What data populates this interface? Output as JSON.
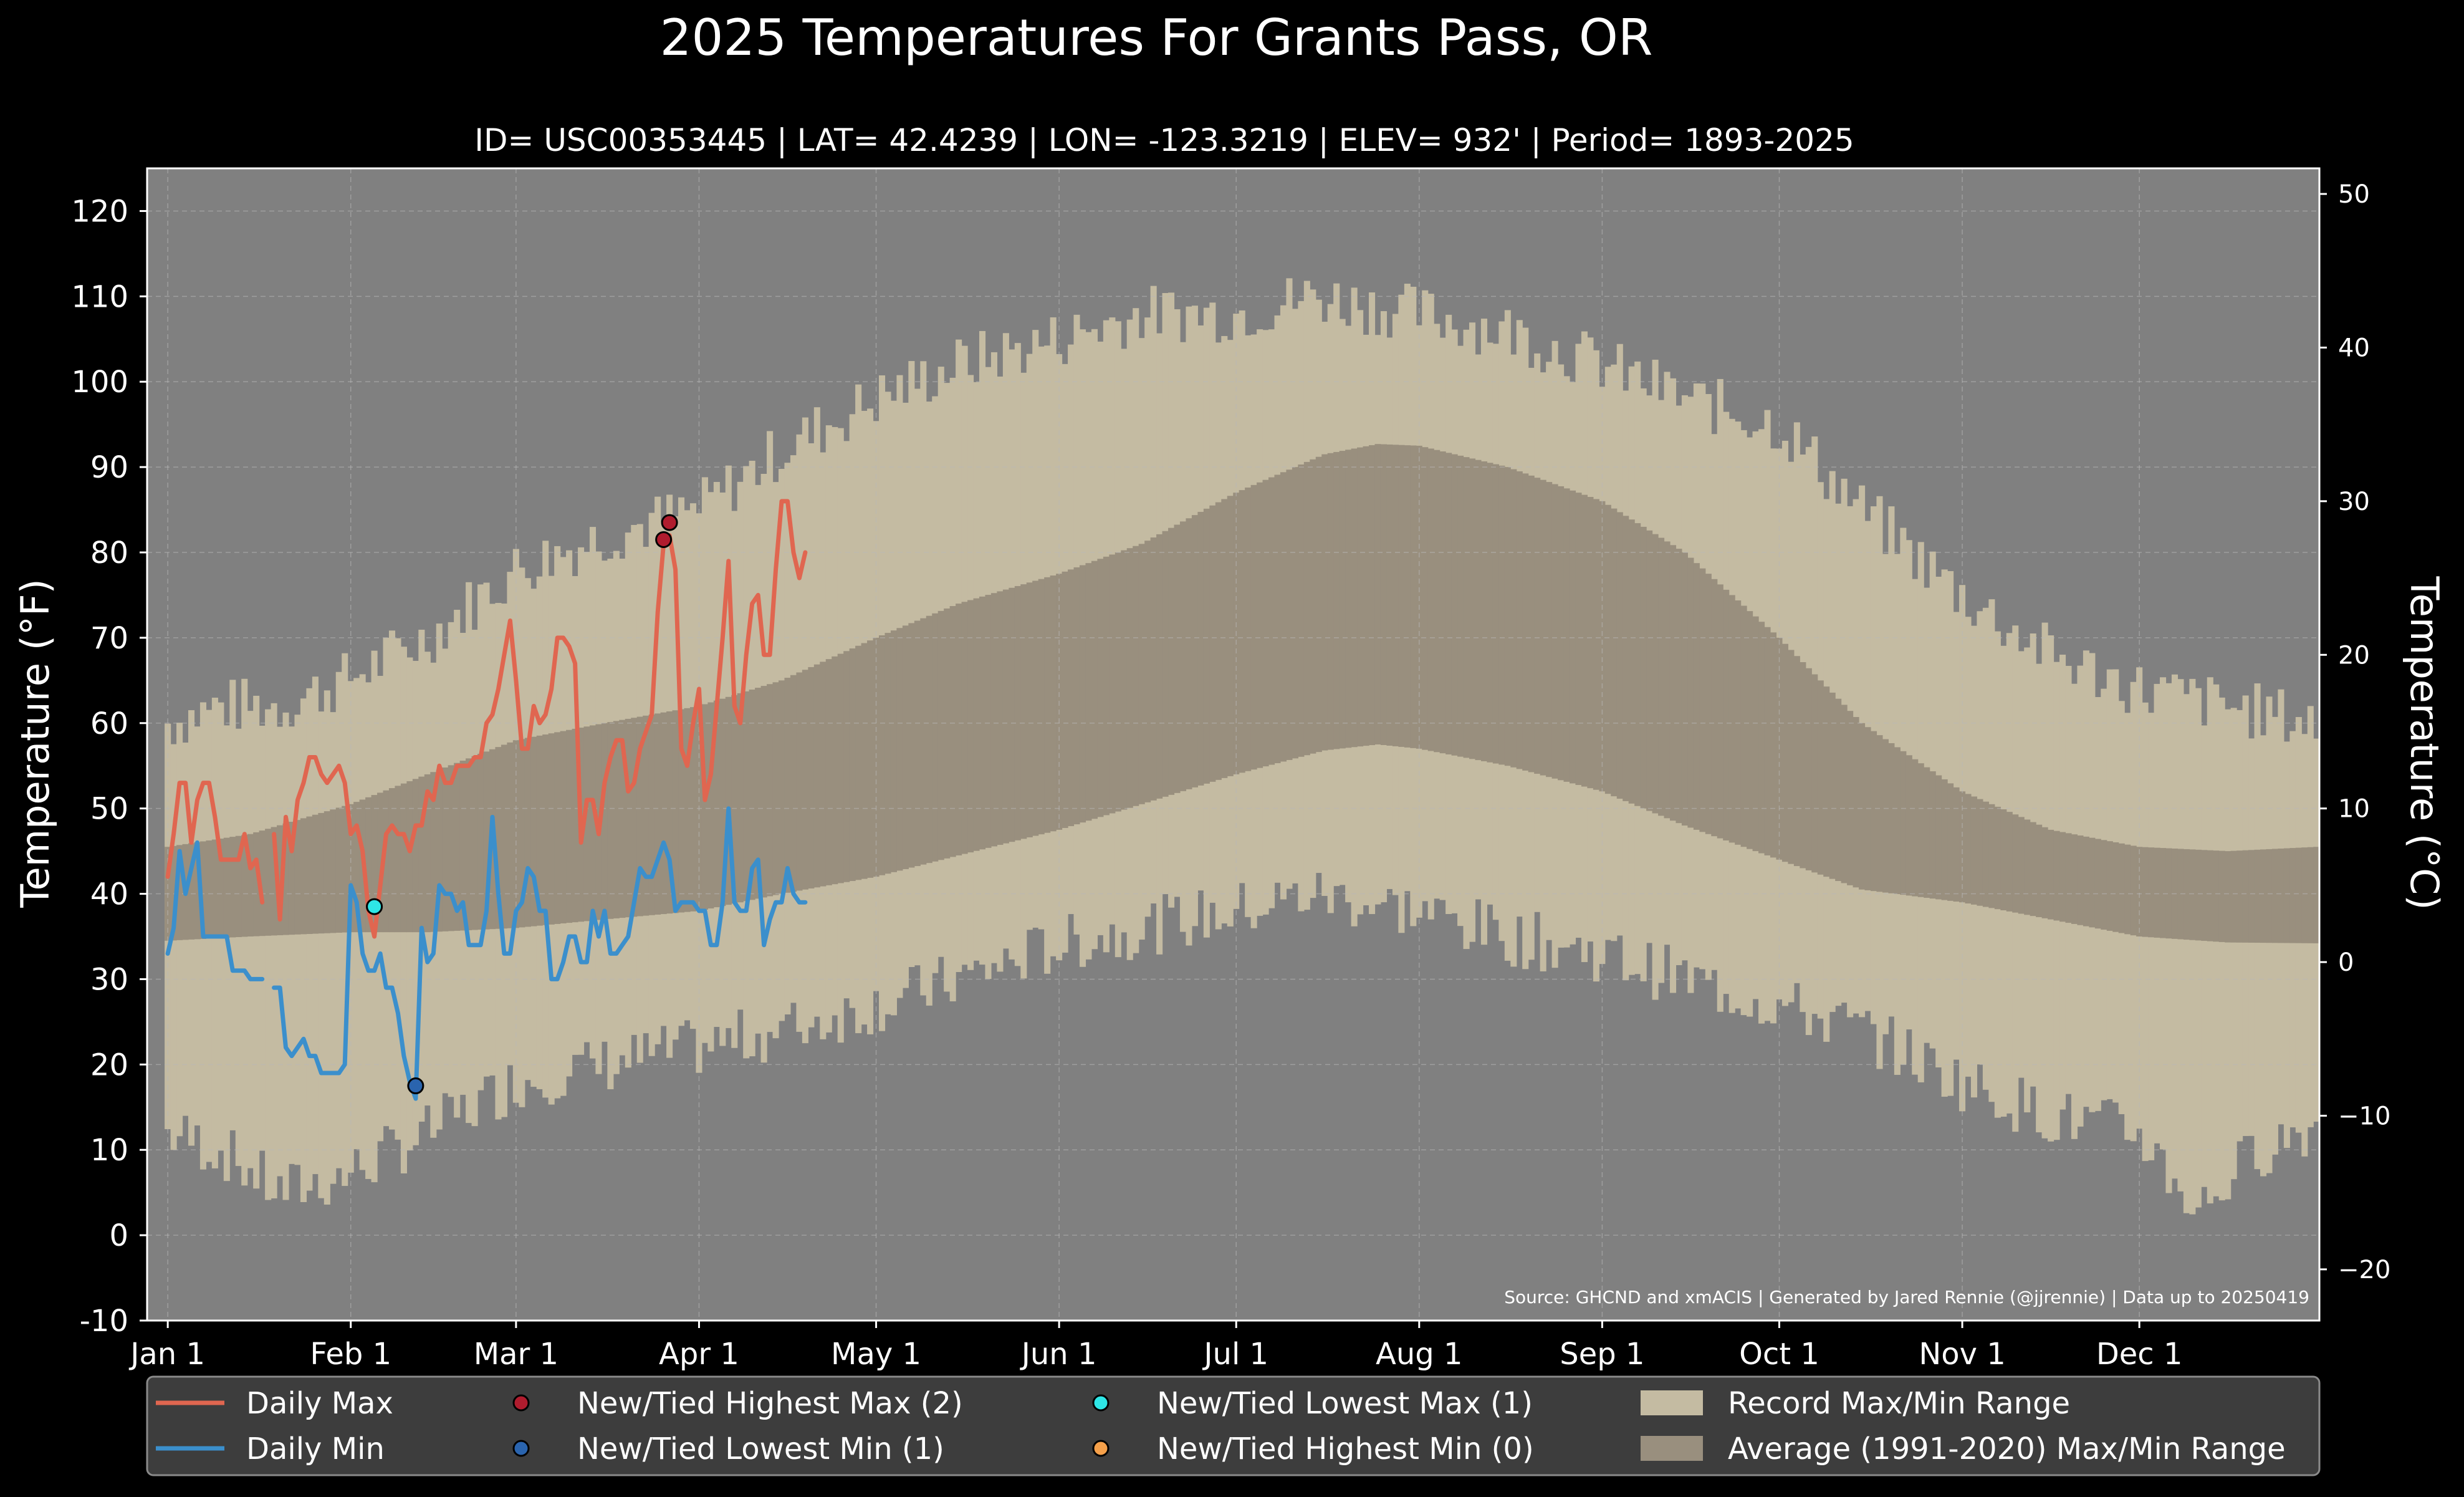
{
  "chart_data": {
    "type": "bar",
    "title": "2025 Temperatures For Grants Pass, OR",
    "subtitle": "ID= USC00353445 | LAT= 42.4239 | LON= -123.3219 | ELEV= 932' | Period= 1893-2025",
    "ylabel_left": "Temperature (°F)",
    "ylabel_right": "Temperature (°C)",
    "source_note": "Source: GHCND and xmACIS | Generated by Jared Rennie (@jjrennie) | Data up to 20250419",
    "ylim_f": [
      -10,
      125
    ],
    "yticks_f": [
      -10,
      0,
      10,
      20,
      30,
      40,
      50,
      60,
      70,
      80,
      90,
      100,
      110,
      120
    ],
    "yticks_c": [
      -20,
      -10,
      0,
      10,
      20,
      30,
      40,
      50
    ],
    "xlim_day": [
      -2.5,
      365.5
    ],
    "month_ticks": [
      {
        "label": "Jan 1",
        "day": 1
      },
      {
        "label": "Feb 1",
        "day": 32
      },
      {
        "label": "Mar 1",
        "day": 60
      },
      {
        "label": "Apr 1",
        "day": 91
      },
      {
        "label": "May 1",
        "day": 121
      },
      {
        "label": "Jun 1",
        "day": 152
      },
      {
        "label": "Jul 1",
        "day": 182
      },
      {
        "label": "Aug 1",
        "day": 213
      },
      {
        "label": "Sep 1",
        "day": 244
      },
      {
        "label": "Oct 1",
        "day": 274
      },
      {
        "label": "Nov 1",
        "day": 305
      },
      {
        "label": "Dec 1",
        "day": 335
      }
    ],
    "grid": true,
    "legend_position": "bottom",
    "record_max_anchors": [
      [
        1,
        60
      ],
      [
        10,
        62
      ],
      [
        20,
        62
      ],
      [
        31,
        65
      ],
      [
        45,
        70
      ],
      [
        60,
        78
      ],
      [
        75,
        82
      ],
      [
        91,
        85
      ],
      [
        105,
        92
      ],
      [
        121,
        98
      ],
      [
        135,
        102
      ],
      [
        152,
        105
      ],
      [
        166,
        108
      ],
      [
        182,
        108
      ],
      [
        195,
        110
      ],
      [
        213,
        108
      ],
      [
        228,
        106
      ],
      [
        244,
        102
      ],
      [
        258,
        98
      ],
      [
        274,
        95
      ],
      [
        288,
        85
      ],
      [
        305,
        75
      ],
      [
        320,
        68
      ],
      [
        335,
        64
      ],
      [
        350,
        62
      ],
      [
        365,
        60
      ]
    ],
    "record_min_anchors": [
      [
        1,
        12
      ],
      [
        10,
        10
      ],
      [
        20,
        5
      ],
      [
        31,
        7
      ],
      [
        45,
        12
      ],
      [
        60,
        18
      ],
      [
        75,
        20
      ],
      [
        91,
        22
      ],
      [
        105,
        24
      ],
      [
        121,
        27
      ],
      [
        135,
        30
      ],
      [
        152,
        34
      ],
      [
        166,
        36
      ],
      [
        182,
        38
      ],
      [
        195,
        40
      ],
      [
        213,
        38
      ],
      [
        228,
        35
      ],
      [
        244,
        33
      ],
      [
        258,
        30
      ],
      [
        274,
        27
      ],
      [
        288,
        24
      ],
      [
        305,
        18
      ],
      [
        320,
        14
      ],
      [
        335,
        12
      ],
      [
        345,
        3
      ],
      [
        355,
        10
      ],
      [
        365,
        13
      ]
    ],
    "avg_max_anchors": [
      [
        1,
        45.5
      ],
      [
        15,
        47
      ],
      [
        32,
        50.5
      ],
      [
        45,
        54
      ],
      [
        60,
        58
      ],
      [
        75,
        60
      ],
      [
        91,
        62
      ],
      [
        105,
        65
      ],
      [
        121,
        70
      ],
      [
        135,
        74
      ],
      [
        152,
        77.5
      ],
      [
        166,
        81
      ],
      [
        182,
        87
      ],
      [
        197,
        91.5
      ],
      [
        206,
        92.7
      ],
      [
        213,
        92.5
      ],
      [
        228,
        90
      ],
      [
        244,
        86
      ],
      [
        258,
        80
      ],
      [
        274,
        70
      ],
      [
        288,
        60
      ],
      [
        305,
        52
      ],
      [
        320,
        47.5
      ],
      [
        335,
        45.5
      ],
      [
        350,
        45
      ],
      [
        365,
        45.5
      ]
    ],
    "avg_min_anchors": [
      [
        1,
        34.5
      ],
      [
        15,
        35
      ],
      [
        32,
        35.5
      ],
      [
        45,
        35.5
      ],
      [
        60,
        36
      ],
      [
        75,
        37
      ],
      [
        91,
        38
      ],
      [
        105,
        40
      ],
      [
        121,
        42
      ],
      [
        135,
        44.5
      ],
      [
        152,
        47.5
      ],
      [
        166,
        50.5
      ],
      [
        182,
        54
      ],
      [
        197,
        56.8
      ],
      [
        206,
        57.5
      ],
      [
        213,
        57
      ],
      [
        228,
        55
      ],
      [
        244,
        52
      ],
      [
        258,
        48
      ],
      [
        274,
        44
      ],
      [
        288,
        40.5
      ],
      [
        305,
        39
      ],
      [
        320,
        37
      ],
      [
        335,
        35
      ],
      [
        350,
        34.3
      ],
      [
        365,
        34.2
      ]
    ],
    "series": [
      {
        "name": "Daily Max",
        "color": "#e06650",
        "values": [
          42,
          47,
          53,
          53,
          46,
          51,
          53,
          53,
          49,
          44,
          44,
          44,
          44,
          47,
          43,
          44,
          39,
          null,
          47,
          37,
          49,
          45,
          51,
          53,
          56,
          56,
          54,
          53,
          54,
          55,
          53,
          47,
          48,
          45,
          38,
          35,
          41,
          47,
          48,
          47,
          47,
          45,
          48,
          48,
          52,
          51,
          55,
          53,
          53,
          55,
          55,
          55,
          56,
          56,
          60,
          61,
          64,
          68,
          72,
          65,
          57,
          57,
          62,
          60,
          61,
          64,
          70,
          70,
          69,
          67,
          46,
          51,
          51,
          47,
          53,
          56,
          58,
          58,
          52,
          53,
          57,
          59,
          61,
          73,
          81,
          82,
          78,
          57,
          55,
          60,
          64,
          51,
          54,
          62,
          70,
          79,
          62,
          60,
          68,
          74,
          75,
          68,
          68,
          78,
          86,
          86,
          80,
          77,
          80
        ]
      },
      {
        "name": "Daily Min",
        "color": "#3b8fcc",
        "values": [
          33,
          36,
          45,
          40,
          43,
          46,
          35,
          35,
          35,
          35,
          35,
          31,
          31,
          31,
          30,
          30,
          30,
          null,
          29,
          29,
          22,
          21,
          22,
          23,
          21,
          21,
          19,
          19,
          19,
          19,
          20,
          41,
          39,
          33,
          31,
          31,
          33,
          29,
          29,
          26,
          21,
          18,
          16,
          36,
          32,
          33,
          41,
          40,
          40,
          38,
          39,
          34,
          34,
          34,
          38,
          49,
          40,
          33,
          33,
          38,
          39,
          43,
          42,
          38,
          38,
          30,
          30,
          32,
          35,
          35,
          32,
          32,
          38,
          35,
          38,
          33,
          33,
          34,
          35,
          39,
          43,
          42,
          42,
          44,
          46,
          44,
          38,
          39,
          39,
          39,
          38,
          38,
          34,
          34,
          39,
          50,
          39,
          38,
          38,
          43,
          44,
          34,
          37,
          39,
          39,
          43,
          40,
          39,
          39
        ]
      }
    ],
    "highest_max_points": [
      {
        "day": 86,
        "value": 83.5
      },
      {
        "day": 85,
        "value": 81.5
      }
    ],
    "lowest_min_points": [
      {
        "day": 43,
        "value": 17.5
      }
    ],
    "lowest_max_points": [
      {
        "day": 36,
        "value": 38.5
      }
    ],
    "highest_min_points": [],
    "legend": [
      {
        "label": "Daily Max",
        "type": "line",
        "color": "#e06650"
      },
      {
        "label": "Daily Min",
        "type": "line",
        "color": "#3b8fcc"
      },
      {
        "label": "New/Tied Highest Max (2)",
        "type": "dot",
        "color": "#b01c2e"
      },
      {
        "label": "New/Tied Lowest Min (1)",
        "type": "dot",
        "color": "#2a64ae"
      },
      {
        "label": "New/Tied Lowest Max (1)",
        "type": "dot",
        "color": "#2ee6e6"
      },
      {
        "label": "New/Tied Highest Min (0)",
        "type": "dot",
        "color": "#f5a04a"
      },
      {
        "label": "Record Max/Min Range",
        "type": "patch",
        "color": "#c4bba2"
      },
      {
        "label": "Average (1991-2020) Max/Min Range",
        "type": "patch",
        "color": "#998f7e"
      }
    ],
    "colors": {
      "background": "#000000",
      "plot_bg": "#808080",
      "record_range": "#c4bba2",
      "average_range": "#998f7e",
      "legend_bg": "#3d3d3d"
    }
  }
}
